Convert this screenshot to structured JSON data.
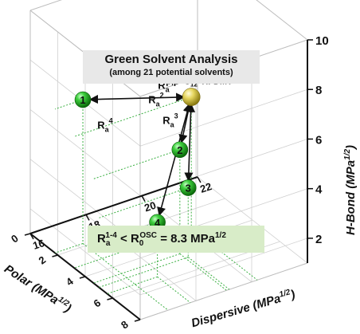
{
  "chart_data": {
    "type": "scatter3d",
    "title": "Green Solvent Analysis",
    "subtitle": "(among 21 potential solvents)",
    "axes": {
      "x": {
        "label": "Dispersive (MPa",
        "unit_sup": "1/2",
        "unit_close": ")",
        "range": [
          16,
          22
        ],
        "ticks": [
          16,
          18,
          20,
          22
        ]
      },
      "y": {
        "label": "Polar (MPa",
        "unit_sup": "1/2",
        "unit_close": ")",
        "range": [
          0,
          8
        ],
        "ticks": [
          0,
          2,
          4,
          6,
          8
        ]
      },
      "z": {
        "label": "H-Bond (MPa",
        "unit_sup": "1/2",
        "unit_close": ")",
        "range": [
          1,
          10
        ],
        "ticks": [
          2,
          4,
          6,
          8,
          10
        ]
      }
    },
    "target": {
      "label": "β,β'-C",
      "label_sub": "12",
      "label_tail": "-TIFDMT",
      "x": 20.2,
      "y": 3.2,
      "z": 6.3,
      "color": "#d9c640"
    },
    "solvents": [
      {
        "label": "1",
        "x": 17.0,
        "y": 1.8,
        "z": 6.8,
        "color": "#22b022"
      },
      {
        "label": "2",
        "x": 19.1,
        "y": 4.6,
        "z": 5.2,
        "color": "#22b022"
      },
      {
        "label": "3",
        "x": 19.2,
        "y": 5.0,
        "z": 3.8,
        "color": "#22b022"
      },
      {
        "label": "4",
        "x": 17.8,
        "y": 5.6,
        "z": 3.2,
        "color": "#22b022"
      }
    ],
    "distances": [
      {
        "label": "R",
        "sub": "a",
        "sup": "1",
        "from": "target",
        "to": "1"
      },
      {
        "label": "R",
        "sub": "a",
        "sup": "2",
        "from": "target",
        "to": "2"
      },
      {
        "label": "R",
        "sub": "a",
        "sup": "3",
        "from": "target",
        "to": "3"
      },
      {
        "label": "R",
        "sub": "a",
        "sup": "4",
        "from": "target",
        "to": "4"
      }
    ],
    "annotation": {
      "r": "R",
      "r_sub": "a",
      "r_sup": "1-4",
      "lt": " < R",
      "r0_sub": "0",
      "r0_sup": "OSC",
      "eq": " = 8.3 MPa",
      "unit_sup": "1/2"
    },
    "grid": true,
    "colors": {
      "box": "#d0d0d0",
      "dropline": "#3cb043",
      "arrow": "#111111"
    }
  }
}
